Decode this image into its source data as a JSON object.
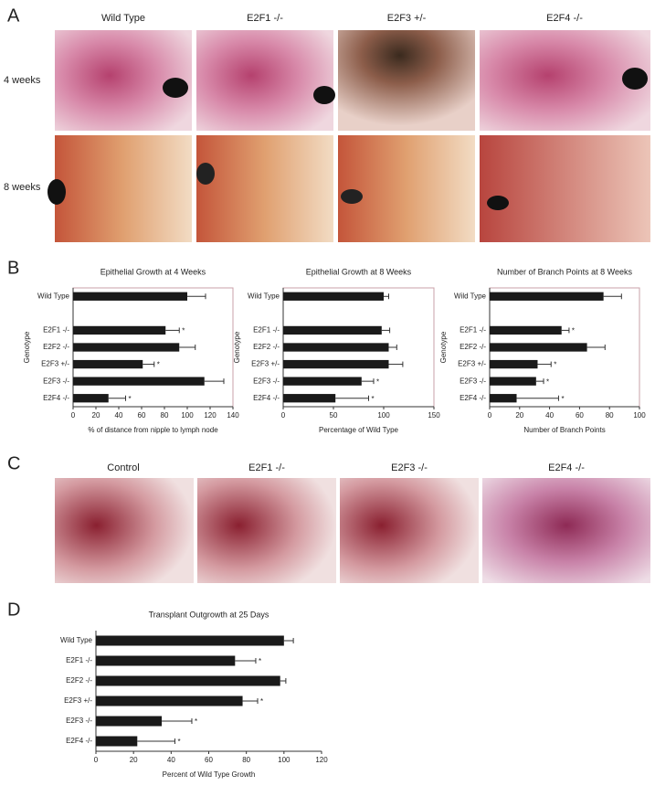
{
  "panel_letters": [
    "A",
    "B",
    "C",
    "D"
  ],
  "panel_a": {
    "columns": [
      "Wild Type",
      "E2F1 -/-",
      "E2F3 +/-",
      "E2F4 -/-"
    ],
    "rows": [
      "4 weeks",
      "8 weeks"
    ]
  },
  "panel_c": {
    "columns": [
      "Control",
      "E2F1 -/-",
      "E2F3 -/-",
      "E2F4 -/-"
    ]
  },
  "chart_data": [
    {
      "type": "bar",
      "orientation": "horizontal",
      "title": "Epithelial Growth at 4 Weeks",
      "xlabel": "% of distance from nipple to lymph node",
      "ylabel": "Genotype",
      "categories": [
        "Wild Type",
        "E2F1 -/-",
        "E2F2 -/-",
        "E2F3 +/-",
        "E2F3 -/-",
        "E2F4 -/-"
      ],
      "values": [
        100,
        81,
        93,
        61,
        115,
        31
      ],
      "errors": [
        16,
        12,
        14,
        10,
        17,
        15
      ],
      "annotations": [
        {
          "category": "E2F1 -/-",
          "text": "*"
        },
        {
          "category": "E2F3 +/-",
          "text": "*"
        },
        {
          "category": "E2F4 -/-",
          "text": "*"
        }
      ],
      "xlim": [
        0,
        140
      ],
      "xticks": [
        0,
        20,
        40,
        60,
        80,
        100,
        120,
        140
      ],
      "color": "#1a1a1a"
    },
    {
      "type": "bar",
      "orientation": "horizontal",
      "title": "Epithelial Growth at 8 Weeks",
      "xlabel": "Percentage of Wild Type",
      "ylabel": "Genotype",
      "categories": [
        "Wild Type",
        "E2F1 -/-",
        "E2F2 -/-",
        "E2F3 +/-",
        "E2F3 -/-",
        "E2F4 -/-"
      ],
      "values": [
        100,
        98,
        105,
        105,
        78,
        52
      ],
      "errors": [
        5,
        8,
        8,
        14,
        12,
        33
      ],
      "annotations": [
        {
          "category": "E2F3 -/-",
          "text": "*"
        },
        {
          "category": "E2F4 -/-",
          "text": "*"
        }
      ],
      "xlim": [
        0,
        150
      ],
      "xticks": [
        0,
        50,
        100,
        150
      ],
      "color": "#1a1a1a"
    },
    {
      "type": "bar",
      "orientation": "horizontal",
      "title": "Number of Branch Points at 8 Weeks",
      "xlabel": "Number of Branch Points",
      "ylabel": "Genotype",
      "categories": [
        "Wild Type",
        "E2F1 -/-",
        "E2F2 -/-",
        "E2F3 +/-",
        "E2F3 -/-",
        "E2F4 -/-"
      ],
      "values": [
        76,
        48,
        65,
        32,
        31,
        18
      ],
      "errors": [
        12,
        5,
        12,
        9,
        5,
        28
      ],
      "annotations": [
        {
          "category": "E2F1 -/-",
          "text": "*"
        },
        {
          "category": "E2F3 +/-",
          "text": "*"
        },
        {
          "category": "E2F3 -/-",
          "text": "*"
        },
        {
          "category": "E2F4 -/-",
          "text": "*"
        }
      ],
      "xlim": [
        0,
        100
      ],
      "xticks": [
        0,
        20,
        40,
        60,
        80,
        100
      ],
      "color": "#1a1a1a"
    },
    {
      "type": "bar",
      "orientation": "horizontal",
      "title": "Transplant Outgrowth at 25 Days",
      "xlabel": "Percent of Wild Type Growth",
      "categories": [
        "Wild Type",
        "E2F1 -/-",
        "E2F2 -/-",
        "E2F3 +/-",
        "E2F3 -/-",
        "E2F4 -/-"
      ],
      "values": [
        100,
        74,
        98,
        78,
        35,
        22
      ],
      "errors": [
        5,
        11,
        3,
        8,
        16,
        20
      ],
      "annotations": [
        {
          "category": "E2F1 -/-",
          "text": "*"
        },
        {
          "category": "E2F3 +/-",
          "text": "*"
        },
        {
          "category": "E2F3 -/-",
          "text": "*"
        },
        {
          "category": "E2F4 -/-",
          "text": "*"
        }
      ],
      "xlim": [
        0,
        120
      ],
      "xticks": [
        0,
        20,
        40,
        60,
        80,
        100,
        120
      ],
      "color": "#1a1a1a"
    }
  ]
}
